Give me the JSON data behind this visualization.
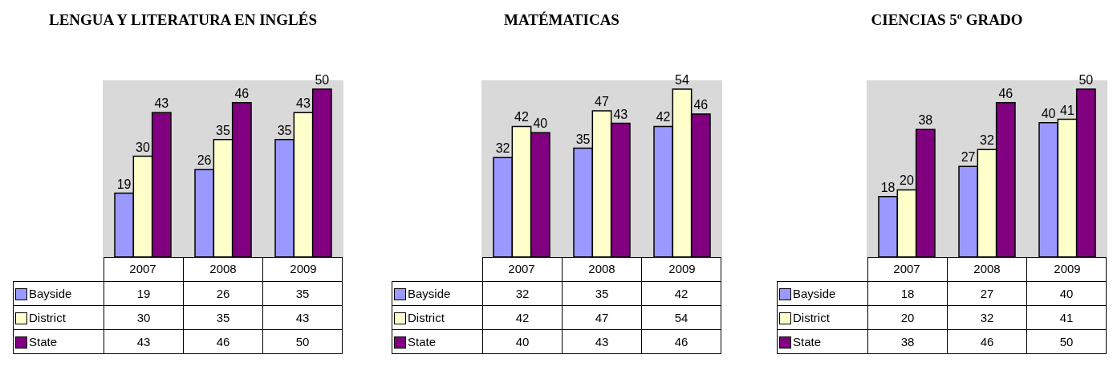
{
  "chart_data": [
    {
      "type": "bar",
      "title": "LENGUA Y LITERATURA EN INGLÉS",
      "categories": [
        "2007",
        "2008",
        "2009"
      ],
      "series": [
        {
          "color": "#9999ff",
          "values": [
            19,
            26,
            35
          ],
          "value_labels": [
            "19",
            "26",
            "35"
          ]
        },
        {
          "color": "#ffffcc",
          "values": [
            30,
            35,
            43
          ],
          "value_labels": [
            "30",
            "35",
            "43"
          ]
        },
        {
          "color": "#800080",
          "values": [
            43,
            46,
            50
          ],
          "value_labels": [
            "43",
            "46",
            "50"
          ]
        }
      ]
    },
    {
      "type": "other",
      "series": [
        {
          "name": "Bayside",
          "color": "#9999ff"
        },
        {
          "name": "District",
          "color": "#ffffcc"
        },
        {
          "name": "State",
          "color": "#800080"
        }
      ],
      "legend": "bottom left",
      "annotations": [
        "19",
        "26",
        "35",
        "30",
        "35",
        "43",
        "43",
        "46",
        "50"
      ]
    },
    {
      "type": "bar",
      "title": "MATÉMATICAS",
      "categories": [
        "2007",
        "2008",
        "2009"
      ],
      "series": [
        {
          "color": "#9999ff",
          "values": [
            32,
            35,
            42
          ],
          "value_labels": [
            "32",
            "35",
            "42"
          ]
        },
        {
          "color": "#ffffcc",
          "values": [
            42,
            47,
            54
          ],
          "value_labels": [
            "42",
            "47",
            "54"
          ]
        },
        {
          "color": "#800080",
          "values": [
            40,
            43,
            46
          ],
          "value_labels": [
            "40",
            "43",
            "46"
          ]
        }
      ]
    },
    {
      "type": "other",
      "series": [
        {
          "name": "Bayside",
          "color": "#9999ff"
        },
        {
          "name": "District",
          "color": "#ffffcc"
        },
        {
          "name": "State",
          "color": "#800080"
        }
      ],
      "legend": "bottom left",
      "annotations": [
        "32",
        "35",
        "42",
        "42",
        "47",
        "54",
        "40",
        "43",
        "46"
      ]
    },
    {
      "type": "bar",
      "title": "CIENCIAS 5º GRADO",
      "categories": [
        "2007",
        "2008",
        "2009"
      ],
      "series": [
        {
          "color": "#9999ff",
          "values": [
            18,
            27,
            40
          ],
          "value_labels": [
            "18",
            "27",
            "40"
          ]
        },
        {
          "color": "#ffffcc",
          "values": [
            20,
            32,
            41
          ],
          "value_labels": [
            "20",
            "32",
            "41"
          ]
        },
        {
          "color": "#800080",
          "values": [
            38,
            46,
            50
          ],
          "value_labels": [
            "38",
            "46",
            "50"
          ]
        }
      ]
    },
    {
      "type": "other",
      "series": [
        {
          "name": "Bayside",
          "color": "#9999ff"
        },
        {
          "name": "District",
          "color": "#ffffcc"
        },
        {
          "name": "State",
          "color": "#800080"
        }
      ],
      "legend": "bottom left",
      "annotations": [
        "18",
        "27",
        "40",
        "20",
        "32",
        "41",
        "38",
        "46",
        "50"
      ]
    }
  ]
}
